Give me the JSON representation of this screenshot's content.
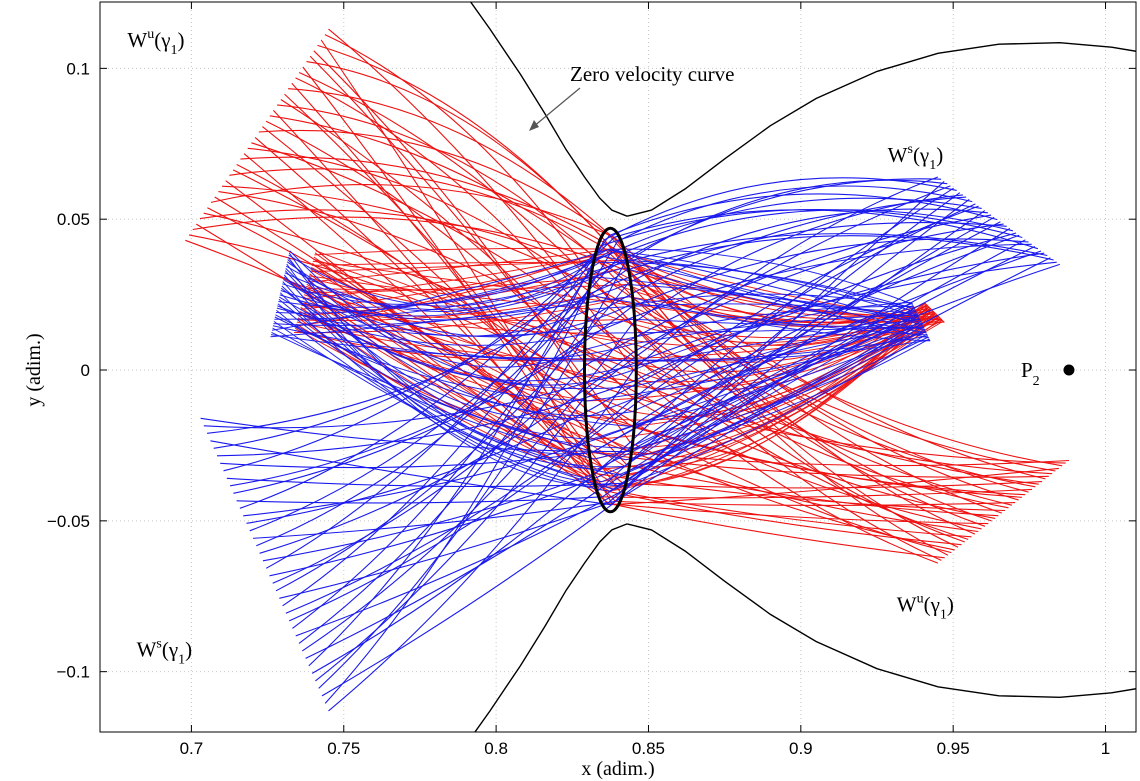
{
  "chart_data": {
    "type": "line",
    "xlabel": "x (adim.)",
    "ylabel": "y (adim.)",
    "xlim": [
      0.67,
      1.01
    ],
    "ylim": [
      -0.12,
      0.122
    ],
    "grid": true,
    "x_ticks": [
      0.7,
      0.75,
      0.8,
      0.85,
      0.9,
      0.95,
      1.0
    ],
    "x_tick_labels": [
      "0.7",
      "0.75",
      "0.8",
      "0.85",
      "0.9",
      "0.95",
      "1"
    ],
    "y_ticks": [
      0.1,
      0.05,
      0,
      -0.05,
      -0.1
    ],
    "y_tick_labels": [
      "0.1",
      "0.05",
      "0",
      "−0.05",
      "−0.1"
    ],
    "colors": {
      "unstable": "#ee1111",
      "stable": "#1a1aee",
      "zvc": "#000000",
      "orbit": "#000000"
    },
    "lyapunov_orbit": {
      "center_x": 0.8375,
      "center_y": 0,
      "semi_x": 0.0085,
      "semi_y": 0.047
    },
    "primary": {
      "x": 0.988,
      "y": 0.0,
      "label": "P",
      "subscript": "2"
    },
    "zero_velocity_curve": {
      "label": "Zero velocity curve",
      "upper_left": [
        [
          0.786,
          0.13
        ],
        [
          0.798,
          0.113
        ],
        [
          0.808,
          0.098
        ],
        [
          0.816,
          0.085
        ],
        [
          0.823,
          0.073
        ],
        [
          0.829,
          0.064
        ],
        [
          0.834,
          0.057
        ],
        [
          0.838,
          0.053
        ],
        [
          0.843,
          0.051
        ]
      ],
      "upper_right": [
        [
          0.843,
          0.051
        ],
        [
          0.851,
          0.053
        ],
        [
          0.862,
          0.06
        ],
        [
          0.875,
          0.07
        ],
        [
          0.89,
          0.081
        ],
        [
          0.905,
          0.09
        ],
        [
          0.925,
          0.099
        ],
        [
          0.945,
          0.105
        ],
        [
          0.965,
          0.108
        ],
        [
          0.985,
          0.1085
        ],
        [
          1.002,
          0.107
        ],
        [
          1.02,
          0.104
        ]
      ],
      "lower_left": [
        [
          0.786,
          -0.13
        ],
        [
          0.798,
          -0.113
        ],
        [
          0.808,
          -0.098
        ],
        [
          0.816,
          -0.085
        ],
        [
          0.823,
          -0.073
        ],
        [
          0.829,
          -0.064
        ],
        [
          0.834,
          -0.057
        ],
        [
          0.838,
          -0.053
        ],
        [
          0.843,
          -0.051
        ]
      ],
      "lower_right": [
        [
          0.843,
          -0.051
        ],
        [
          0.851,
          -0.053
        ],
        [
          0.862,
          -0.06
        ],
        [
          0.875,
          -0.07
        ],
        [
          0.89,
          -0.081
        ],
        [
          0.905,
          -0.09
        ],
        [
          0.925,
          -0.099
        ],
        [
          0.945,
          -0.105
        ],
        [
          0.965,
          -0.108
        ],
        [
          0.985,
          -0.1085
        ],
        [
          1.002,
          -0.107
        ],
        [
          1.02,
          -0.104
        ]
      ]
    },
    "manifolds": {
      "num_trajectories": 40,
      "unstable_left": {
        "outer_tip": [
          0.745,
          0.113
        ],
        "outer_end": [
          0.698,
          0.043
        ],
        "inner_end": [
          0.74,
          0.0
        ]
      },
      "unstable_right": {
        "outer_tip": [
          0.945,
          -0.064
        ],
        "outer_end": [
          0.988,
          -0.03
        ],
        "inner_end": [
          0.94,
          0.0
        ]
      },
      "stable_left": {
        "outer_tip": [
          0.745,
          -0.113
        ],
        "outer_end": [
          0.703,
          -0.016
        ],
        "inner_end": [
          0.73,
          0.0
        ]
      },
      "stable_right": {
        "outer_tip": [
          0.945,
          0.064
        ],
        "outer_end": [
          0.985,
          0.035
        ],
        "inner_end": [
          0.935,
          0.0
        ]
      }
    },
    "annotations": [
      {
        "id": "wu-top-left",
        "main": "W",
        "sup": "u",
        "paren": "(γ",
        "sub": "1",
        "close": ")",
        "x": 0.679,
        "y": 0.107
      },
      {
        "id": "ws-top-right",
        "main": "W",
        "sup": "s",
        "paren": "(γ",
        "sub": "1",
        "close": ")",
        "x": 0.9285,
        "y": 0.069
      },
      {
        "id": "wu-bottom-right",
        "main": "W",
        "sup": "u",
        "paren": "(γ",
        "sub": "1",
        "close": ")",
        "x": 0.9315,
        "y": -0.08
      },
      {
        "id": "ws-bottom-left",
        "main": "W",
        "sup": "s",
        "paren": "(γ",
        "sub": "1",
        "close": ")",
        "x": 0.682,
        "y": -0.095
      }
    ]
  }
}
